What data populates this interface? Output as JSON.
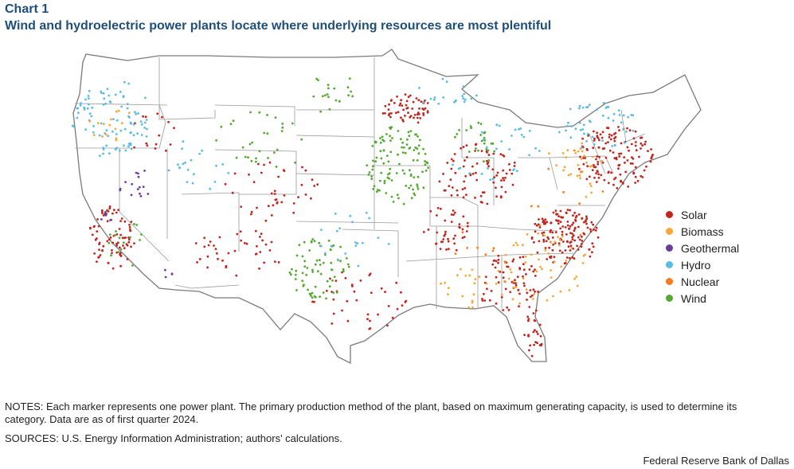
{
  "header": {
    "chart_label": "Chart 1",
    "title": "Wind and hydroelectric power plants locate where underlying resources are most plentiful"
  },
  "legend": [
    {
      "label": "Solar",
      "color": "#c0261f"
    },
    {
      "label": "Biomass",
      "color": "#f5a83a"
    },
    {
      "label": "Geothermal",
      "color": "#6a3d9a"
    },
    {
      "label": "Hydro",
      "color": "#5bbbe0"
    },
    {
      "label": "Nuclear",
      "color": "#f47b20"
    },
    {
      "label": "Wind",
      "color": "#55a832"
    }
  ],
  "footer": {
    "notes": "NOTES: Each marker represents one power plant. The primary production method of the plant, based on maximum generating capacity, is used to determine its category. Data are as of first quarter 2024.",
    "sources": "SOURCES: U.S. Energy Information Administration; authors' calculations.",
    "credit": "Federal Reserve Bank of Dallas"
  }
}
